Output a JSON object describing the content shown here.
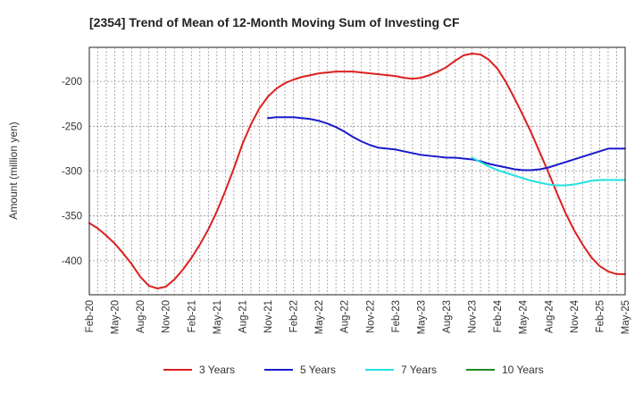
{
  "chart_data": {
    "type": "line",
    "title": "[2354]  Trend of Mean of 12-Month Moving Sum of Investing CF",
    "xlabel": "",
    "ylabel": "Amount (million yen)",
    "ylim": [
      -438,
      -162
    ],
    "yticks": [
      -200,
      -250,
      -300,
      -350,
      -400
    ],
    "x_tick_labels": [
      "Feb-20",
      "May-20",
      "Aug-20",
      "Nov-20",
      "Feb-21",
      "May-21",
      "Aug-21",
      "Nov-21",
      "Feb-22",
      "May-22",
      "Aug-22",
      "Nov-22",
      "Feb-23",
      "May-23",
      "Aug-23",
      "Nov-23",
      "Feb-24",
      "May-24",
      "Aug-24",
      "Nov-24",
      "Feb-25",
      "May-25"
    ],
    "grid": true,
    "legend_position": "bottom",
    "series": [
      {
        "name": "3 Years",
        "color": "#dd2020",
        "x_index": [
          0,
          1,
          2,
          3,
          4,
          5,
          6,
          7,
          8,
          9,
          10,
          11,
          12,
          13,
          14,
          15,
          16,
          17,
          18,
          19,
          20,
          21,
          22,
          23,
          24,
          25,
          26,
          27,
          28,
          29,
          30,
          31,
          32,
          33,
          34,
          35,
          36,
          37,
          38,
          39,
          40,
          41,
          42,
          43,
          44,
          45,
          46,
          47,
          48,
          49,
          50,
          51,
          52,
          53,
          54,
          55,
          56,
          57,
          58,
          59,
          60,
          61,
          62,
          63
        ],
        "values": [
          -358,
          -364,
          -372,
          -381,
          -392,
          -404,
          -418,
          -428,
          -431,
          -429,
          -421,
          -410,
          -397,
          -382,
          -365,
          -345,
          -322,
          -297,
          -270,
          -248,
          -230,
          -217,
          -208,
          -202,
          -198,
          -195,
          -193,
          -191,
          -190,
          -189,
          -189,
          -189,
          -190,
          -191,
          -192,
          -193,
          -194,
          -196,
          -197,
          -196,
          -193,
          -189,
          -184,
          -177,
          -171,
          -169,
          -170,
          -176,
          -186,
          -201,
          -219,
          -238,
          -258,
          -280,
          -302,
          -325,
          -347,
          -366,
          -382,
          -396,
          -406,
          -412,
          -415,
          -415
        ]
      },
      {
        "name": "5 Years",
        "color": "#1a1acc",
        "x_index": [
          21,
          22,
          23,
          24,
          25,
          26,
          27,
          28,
          29,
          30,
          31,
          32,
          33,
          34,
          35,
          36,
          37,
          38,
          39,
          40,
          41,
          42,
          43,
          44,
          45,
          46,
          47,
          48,
          49,
          50,
          51,
          52,
          53,
          54,
          55,
          56,
          57,
          58,
          59,
          60,
          61,
          62,
          63
        ],
        "values": [
          -241,
          -240,
          -240,
          -240,
          -241,
          -242,
          -244,
          -247,
          -251,
          -256,
          -262,
          -267,
          -271,
          -274,
          -275,
          -276,
          -278,
          -280,
          -282,
          -283,
          -284,
          -285,
          -285,
          -286,
          -287,
          -289,
          -292,
          -294,
          -296,
          -298,
          -299,
          -299,
          -298,
          -296,
          -293,
          -290,
          -287,
          -284,
          -281,
          -278,
          -275,
          -275,
          -275
        ]
      },
      {
        "name": "7 Years",
        "color": "#22e0e0",
        "x_index": [
          45,
          46,
          47,
          48,
          49,
          50,
          51,
          52,
          53,
          54,
          55,
          56,
          57,
          58,
          59,
          60,
          61,
          62,
          63
        ],
        "values": [
          -285,
          -290,
          -295,
          -299,
          -302,
          -305,
          -308,
          -311,
          -313,
          -315,
          -316,
          -316,
          -315,
          -313,
          -311,
          -310,
          -310,
          -310,
          -310
        ]
      },
      {
        "name": "10 Years",
        "color": "#228822",
        "x_index": [],
        "values": []
      }
    ]
  }
}
